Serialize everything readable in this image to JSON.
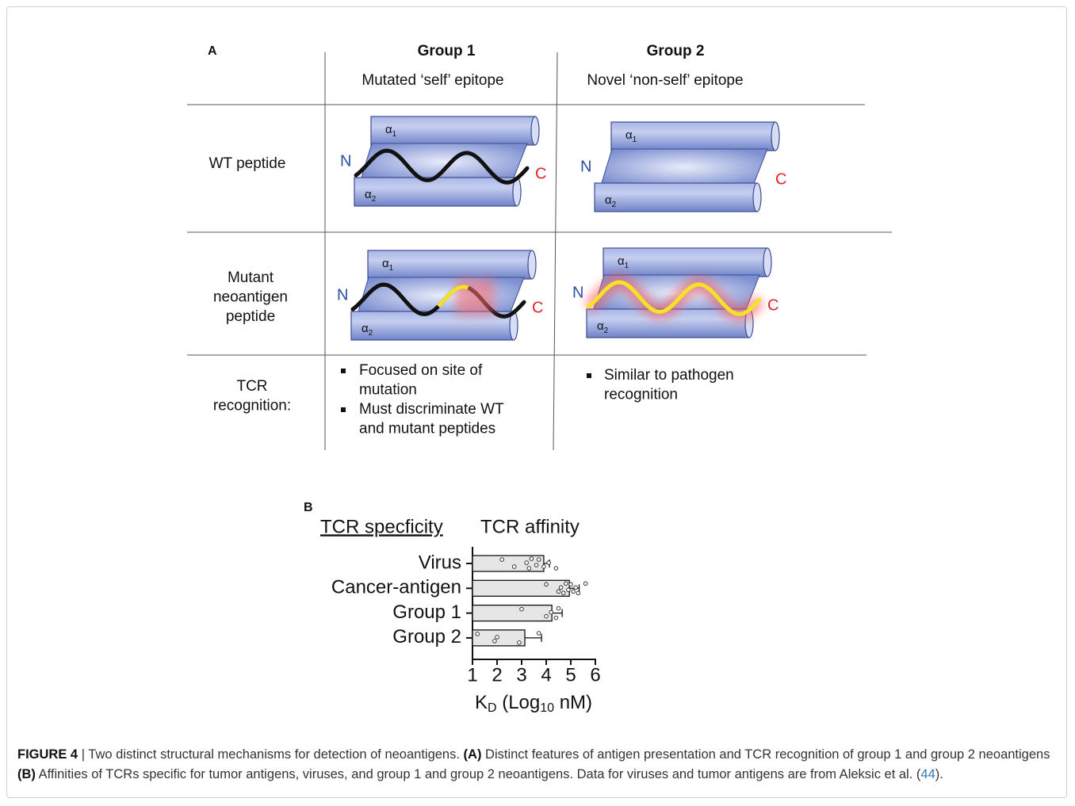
{
  "panel_a": {
    "label": "A",
    "columns": [
      {
        "title": "Group 1",
        "subtitle": "Mutated ‘self’ epitope"
      },
      {
        "title": "Group 2",
        "subtitle": "Novel ‘non-self’ epitope"
      }
    ],
    "rows": [
      [
        "WT peptide"
      ],
      [
        "Mutant",
        "neoantigen",
        "peptide"
      ],
      [
        "TCR",
        "recognition:"
      ]
    ],
    "helix_labels": [
      {
        "symbol": "α",
        "index": "1"
      },
      {
        "symbol": "α",
        "index": "2"
      }
    ],
    "terminus_labels": [
      "N",
      "C"
    ],
    "recognition": [
      [
        [
          "Focused on site of",
          "mutation"
        ],
        [
          "Must discriminate WT",
          "and mutant peptides"
        ]
      ],
      [
        [
          "Similar to pathogen",
          "recognition"
        ]
      ]
    ]
  },
  "panel_b": {
    "label": "B",
    "headers": [
      "TCR specficity",
      "TCR affinity"
    ],
    "chart_data": {
      "type": "bar",
      "orientation": "horizontal",
      "categories": [
        "Virus",
        "Cancer-antigen",
        "Group 1",
        "Group 2"
      ],
      "values": [
        3.9,
        4.94,
        4.23,
        3.13
      ],
      "errors": [
        0.23,
        0.4,
        0.42,
        0.68
      ],
      "points": [
        [
          2.2,
          2.7,
          3.2,
          3.3,
          3.4,
          3.6,
          3.7,
          3.9,
          4.1,
          4.4
        ],
        [
          4.0,
          4.5,
          4.6,
          4.7,
          4.8,
          4.9,
          5.0,
          5.1,
          5.2,
          5.3,
          5.6
        ],
        [
          3.0,
          4.0,
          4.2,
          4.4,
          4.5
        ],
        [
          1.2,
          1.9,
          2.0,
          2.9,
          3.7
        ]
      ],
      "color": "#e6e6e6",
      "xlim": [
        1,
        6
      ],
      "xticks": [
        1,
        2,
        3,
        4,
        5,
        6
      ],
      "xlabel": [
        "K",
        "D",
        " (Log",
        "10",
        " nM)"
      ]
    }
  },
  "caption": {
    "label": "FIGURE 4",
    "separator": "|",
    "text": "Two distinct structural mechanisms for detection of neoantigens.",
    "parts": [
      {
        "label": "(A)",
        "text": "Distinct features of antigen presentation and TCR recognition of group 1 and group 2 neoantigens"
      },
      {
        "label": "(B)",
        "text": "Affinities of TCRs specific for tumor antigens, viruses, and group 1 and group 2 neoantigens. Data for viruses and tumor antigens are from Aleksic et al. ("
      }
    ],
    "ref": "44",
    "end": ")."
  }
}
